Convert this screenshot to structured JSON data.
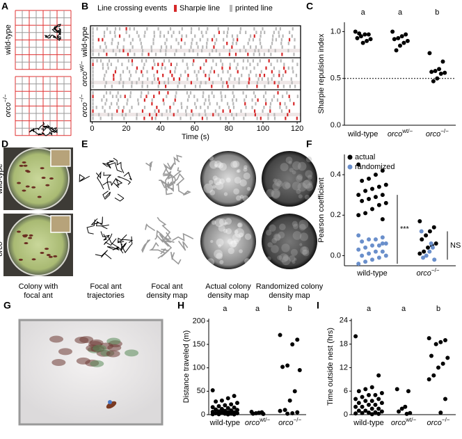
{
  "panel_labels": [
    "A",
    "B",
    "C",
    "D",
    "E",
    "F",
    "G",
    "H",
    "I"
  ],
  "panel_a_rows": [
    {
      "base": "wild-type",
      "sup": null
    },
    {
      "base": "orco",
      "sup": "−/−"
    }
  ],
  "panel_d_rows": [
    {
      "base": "wild-type",
      "sup": null
    },
    {
      "base": "orco",
      "sup": "−/−"
    }
  ],
  "panel_d_caption": [
    "Colony with",
    "focal ant"
  ],
  "panel_e_captions": [
    [
      "Focal ant",
      "trajectories"
    ],
    [
      "Focal ant",
      "density map"
    ],
    [
      "Actual colony",
      "density map"
    ],
    [
      "Randomized colony",
      "density map"
    ]
  ],
  "chart_data": [
    {
      "type": "raster",
      "title": "Line crossing events",
      "legend": [
        {
          "name": "Sharpie line",
          "color": "#d62728"
        },
        {
          "name": "printed line",
          "color": "#b8b8b8"
        }
      ],
      "rows": [
        {
          "base": "wild-type",
          "sup": null
        },
        {
          "base": "orco",
          "sup": "wt/−"
        },
        {
          "base": "orco",
          "sup": "−/−"
        }
      ],
      "xlabel": "Time (s)",
      "xlim": [
        -1,
        122
      ],
      "xticks": [
        0,
        20,
        40,
        60,
        80,
        100,
        120
      ]
    },
    {
      "type": "strip",
      "ylabel": "Sharpie repulsion index",
      "categories": [
        "wild-type",
        "orco",
        "orco"
      ],
      "category_superscripts": [
        null,
        "wt/−",
        "−/−"
      ],
      "letters": [
        "a",
        "a",
        "b"
      ],
      "color": "#000000",
      "values": [
        [
          1.0,
          0.97,
          0.97,
          0.95,
          0.93,
          0.92,
          0.9,
          0.88,
          0.98
        ],
        [
          1.0,
          0.97,
          0.95,
          0.93,
          0.92,
          0.9,
          0.88,
          0.85,
          0.8
        ],
        [
          0.77,
          0.68,
          0.6,
          0.58,
          0.57,
          0.56,
          0.55,
          0.5,
          0.47
        ]
      ],
      "reference_line": 0.5,
      "ylim": [
        0,
        1.1
      ],
      "yticks": [
        {
          "value": 0,
          "label": "0.0"
        },
        {
          "value": 0.5,
          "label": "0.5"
        },
        {
          "value": 1,
          "label": "1.0"
        }
      ]
    },
    {
      "type": "strip",
      "ylabel": "Pearson coefficient",
      "categories": [
        "wild-type",
        "orco"
      ],
      "category_superscripts": [
        null,
        "−/−"
      ],
      "series": [
        {
          "name": "actual",
          "color": "#000000",
          "values": [
            [
              0.45,
              0.42,
              0.4,
              0.38,
              0.37,
              0.35,
              0.34,
              0.33,
              0.32,
              0.3,
              0.3,
              0.29,
              0.28,
              0.27,
              0.26,
              0.25,
              0.23,
              0.21,
              0.2,
              0.18
            ],
            [
              0.17,
              0.14,
              0.12,
              0.1,
              0.08,
              0.06,
              0.05,
              0.04,
              0.02,
              0.01
            ]
          ]
        },
        {
          "name": "randomized",
          "color": "#6a8fcb",
          "values": [
            [
              0.1,
              0.09,
              0.08,
              0.08,
              0.07,
              0.06,
              0.05,
              0.05,
              0.04,
              0.03,
              0.02,
              0.02,
              0.01,
              0.0,
              0.0,
              -0.01,
              -0.02,
              -0.03,
              -0.04,
              0.06
            ],
            [
              0.12,
              0.04,
              0.02,
              0.0,
              -0.01,
              -0.02,
              0.06
            ]
          ]
        }
      ],
      "annotations": [
        "***",
        "NS"
      ],
      "ylim": [
        -0.05,
        0.5
      ],
      "yticks": [
        {
          "value": 0,
          "label": "0.0"
        },
        {
          "value": 0.2,
          "label": "0.2"
        },
        {
          "value": 0.4,
          "label": "0.4"
        }
      ]
    },
    {
      "type": "strip",
      "ylabel": "Distance traveled (m)",
      "categories": [
        "wild-type",
        "orco",
        "orco"
      ],
      "category_superscripts": [
        null,
        "wt/−",
        "−/−"
      ],
      "letters": [
        "a",
        "a",
        "b"
      ],
      "color": "#000000",
      "values": [
        [
          52,
          40,
          35,
          30,
          28,
          25,
          22,
          20,
          18,
          16,
          15,
          14,
          12,
          11,
          10,
          9,
          8,
          7,
          6,
          5,
          5,
          4,
          3,
          3,
          2,
          2,
          1,
          1,
          0.5,
          0.5
        ],
        [
          6,
          5,
          4,
          3,
          2,
          1.5
        ],
        [
          170,
          160,
          150,
          105,
          102,
          95,
          50,
          30,
          10,
          8,
          5,
          3,
          2
        ]
      ],
      "ylim": [
        0,
        205
      ],
      "yticks": [
        0,
        50,
        100,
        150,
        200
      ]
    },
    {
      "type": "strip",
      "ylabel": "Time outside nest (hrs)",
      "categories": [
        "wild-type",
        "orco",
        "orco"
      ],
      "category_superscripts": [
        null,
        "wt/−",
        "−/−"
      ],
      "letters": [
        "a",
        "a",
        "b"
      ],
      "color": "#000000",
      "values": [
        [
          20,
          10,
          7,
          6.5,
          6,
          5.5,
          5,
          5,
          4.5,
          4,
          4,
          3.5,
          3.5,
          3,
          3,
          2.5,
          2.5,
          2,
          2,
          1.5,
          1.5,
          1,
          1,
          0.8,
          0.6,
          0.5,
          0.4,
          0.3,
          0.2,
          0.1
        ],
        [
          6.5,
          6,
          2,
          1.5,
          0.8,
          0.4,
          0.2
        ],
        [
          19.5,
          19,
          18.5,
          18,
          15,
          14.5,
          13,
          12,
          10,
          9,
          4,
          0.5
        ]
      ],
      "ylim": [
        0,
        24.5
      ],
      "yticks": [
        0,
        6,
        12,
        18,
        24
      ]
    }
  ]
}
